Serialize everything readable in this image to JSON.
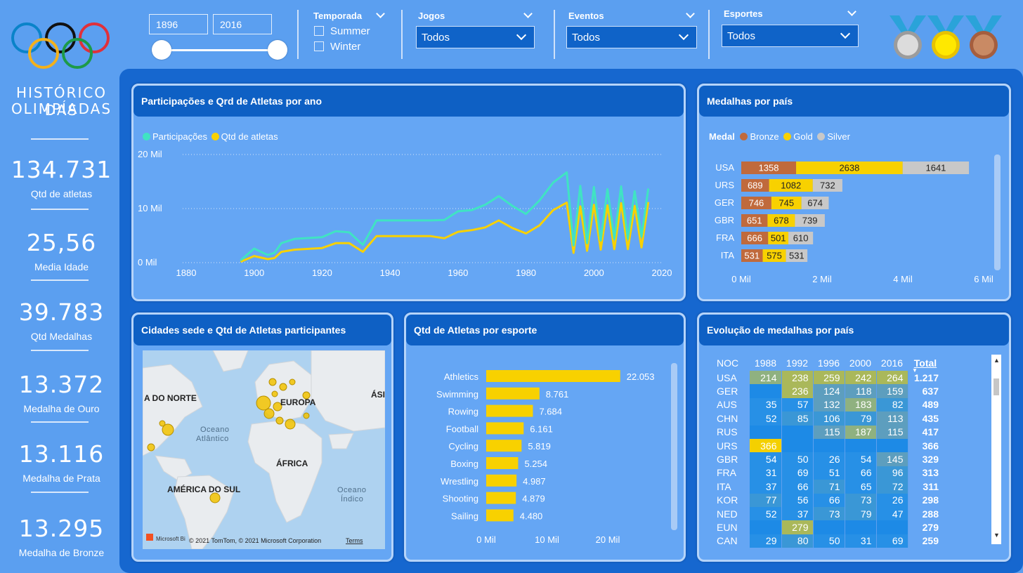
{
  "sidebar": {
    "title_line1": "HISTÓRICO DAS",
    "title_line2": "OLIMPÍADAS",
    "kpis": [
      {
        "value": "134.731",
        "label": "Qtd de atletas"
      },
      {
        "value": "25,56",
        "label": "Media Idade"
      },
      {
        "value": "39.783",
        "label": "Qtd Medalhas"
      },
      {
        "value": "13.372",
        "label": "Medalha de Ouro"
      },
      {
        "value": "13.116",
        "label": "Medalha de Prata"
      },
      {
        "value": "13.295",
        "label": "Medalha de Bronze"
      }
    ]
  },
  "filters": {
    "year_start": "1896",
    "year_end": "2016",
    "temporada": {
      "label": "Temporada",
      "options": [
        "Summer",
        "Winter"
      ]
    },
    "jogos": {
      "label": "Jogos",
      "value": "Todos"
    },
    "eventos": {
      "label": "Eventos",
      "value": "Todos"
    },
    "esportes": {
      "label": "Esportes",
      "value": "Todos"
    }
  },
  "colors": {
    "cyan": "#40e3c3",
    "gold": "#f8d100",
    "bronze": "#c06a3c",
    "silver": "#c8c8c8",
    "panel": "#1667cf",
    "header": "#0e60c4"
  },
  "cards": {
    "line": {
      "title": "Participações e Qrd de Atletas por ano",
      "legend": [
        "Participações",
        "Qtd de atletas"
      ],
      "yticks": [
        "20 Mil",
        "10 Mil",
        "0 Mil"
      ],
      "xticks": [
        "1880",
        "1900",
        "1920",
        "1940",
        "1960",
        "1980",
        "2000",
        "2020"
      ]
    },
    "medals": {
      "title": "Medalhas por país",
      "legend_title": "Medal",
      "legend": [
        "Bronze",
        "Gold",
        "Silver"
      ],
      "xticks": [
        "0 Mil",
        "2 Mil",
        "4 Mil",
        "6 Mil"
      ]
    },
    "map": {
      "title": "Cidades sede e Qtd de Atletas participantes",
      "labels": {
        "na": "A DO NORTE",
        "eu": "EUROPA",
        "as": "ÁSI",
        "oa": "Oceano",
        "oa2": "Atlântico",
        "af": "ÁFRICA",
        "sa": "AMÉRICA DO SUL",
        "oi": "Oceano",
        "oi2": "Índico"
      },
      "logo": "Microsoft Bi",
      "attribution": "© 2021 TomTom, © 2021 Microsoft Corporation",
      "terms": "Terms"
    },
    "sports": {
      "title": "Qtd de Atletas por esporte",
      "xticks": [
        "0 Mil",
        "10 Mil",
        "20 Mil"
      ]
    },
    "evolution": {
      "title": "Evolução de medalhas por país",
      "headers": [
        "NOC",
        "1988",
        "1992",
        "1996",
        "2000",
        "2016",
        "Total"
      ],
      "rows": [
        [
          "USA",
          "214",
          "238",
          "259",
          "242",
          "264",
          "1.217"
        ],
        [
          "GER",
          "",
          "236",
          "124",
          "118",
          "159",
          "637"
        ],
        [
          "AUS",
          "35",
          "57",
          "132",
          "183",
          "82",
          "489"
        ],
        [
          "CHN",
          "52",
          "85",
          "106",
          "79",
          "113",
          "435"
        ],
        [
          "RUS",
          "",
          "",
          "115",
          "187",
          "115",
          "417"
        ],
        [
          "URS",
          "366",
          "",
          "",
          "",
          "",
          "366"
        ],
        [
          "GBR",
          "54",
          "50",
          "26",
          "54",
          "145",
          "329"
        ],
        [
          "FRA",
          "31",
          "69",
          "51",
          "66",
          "96",
          "313"
        ],
        [
          "ITA",
          "37",
          "66",
          "71",
          "65",
          "72",
          "311"
        ],
        [
          "KOR",
          "77",
          "56",
          "66",
          "73",
          "26",
          "298"
        ],
        [
          "NED",
          "52",
          "37",
          "73",
          "79",
          "47",
          "288"
        ],
        [
          "EUN",
          "",
          "279",
          "",
          "",
          "",
          "279"
        ],
        [
          "CAN",
          "29",
          "80",
          "50",
          "31",
          "69",
          "259"
        ]
      ]
    }
  },
  "chart_data": [
    {
      "type": "line",
      "title": "Participações e Qrd de Atletas por ano",
      "ylim": [
        0,
        20000
      ],
      "xlim": [
        1880,
        2020
      ],
      "series": [
        {
          "name": "Participações",
          "x": [
            1896,
            1900,
            1904,
            1906,
            1908,
            1912,
            1920,
            1924,
            1928,
            1932,
            1936,
            1948,
            1952,
            1956,
            1960,
            1964,
            1968,
            1972,
            1976,
            1980,
            1984,
            1988,
            1992,
            1994,
            1996,
            1998,
            2000,
            2002,
            2004,
            2006,
            2008,
            2010,
            2012,
            2014,
            2016
          ],
          "values": [
            400,
            2600,
            1400,
            1800,
            3600,
            4400,
            4700,
            5800,
            5600,
            3300,
            7800,
            7800,
            7800,
            7900,
            9500,
            9700,
            10700,
            12300,
            10500,
            9000,
            11500,
            14800,
            16700,
            3200,
            14200,
            3600,
            14000,
            4100,
            13600,
            4400,
            14100,
            4400,
            13200,
            4800,
            13700
          ]
        },
        {
          "name": "Qtd de atletas",
          "x": [
            1896,
            1900,
            1904,
            1906,
            1908,
            1912,
            1920,
            1924,
            1928,
            1932,
            1936,
            1948,
            1952,
            1956,
            1960,
            1964,
            1968,
            1972,
            1976,
            1980,
            1984,
            1988,
            1992,
            1994,
            1996,
            1998,
            2000,
            2002,
            2004,
            2006,
            2008,
            2010,
            2012,
            2014,
            2016
          ],
          "values": [
            170,
            1220,
            650,
            850,
            2000,
            2400,
            2700,
            3600,
            3600,
            2000,
            4900,
            4900,
            4900,
            4500,
            5700,
            6000,
            6500,
            7800,
            6400,
            5400,
            6900,
            9700,
            11100,
            1800,
            10400,
            2200,
            10700,
            2400,
            10600,
            2500,
            11000,
            2500,
            10500,
            2800,
            11200
          ]
        }
      ]
    },
    {
      "type": "bar",
      "title": "Medalhas por país",
      "categories": [
        "USA",
        "URS",
        "GER",
        "GBR",
        "FRA",
        "ITA"
      ],
      "xlim": [
        0,
        6000
      ],
      "series": [
        {
          "name": "Bronze",
          "values": [
            1358,
            689,
            746,
            651,
            666,
            531
          ]
        },
        {
          "name": "Gold",
          "values": [
            2638,
            1082,
            745,
            678,
            501,
            575
          ]
        },
        {
          "name": "Silver",
          "values": [
            1641,
            732,
            674,
            739,
            610,
            531
          ]
        }
      ]
    },
    {
      "type": "bar",
      "title": "Qtd de Atletas por esporte",
      "categories": [
        "Athletics",
        "Swimming",
        "Rowing",
        "Football",
        "Cycling",
        "Boxing",
        "Wrestling",
        "Shooting",
        "Sailing"
      ],
      "values": [
        22053,
        8761,
        7684,
        6161,
        5819,
        5254,
        4987,
        4879,
        4480
      ],
      "labels": [
        "22.053",
        "8.761",
        "7.684",
        "6.161",
        "5.819",
        "5.254",
        "4.987",
        "4.879",
        "4.480"
      ],
      "xlim": [
        0,
        25000
      ]
    }
  ]
}
